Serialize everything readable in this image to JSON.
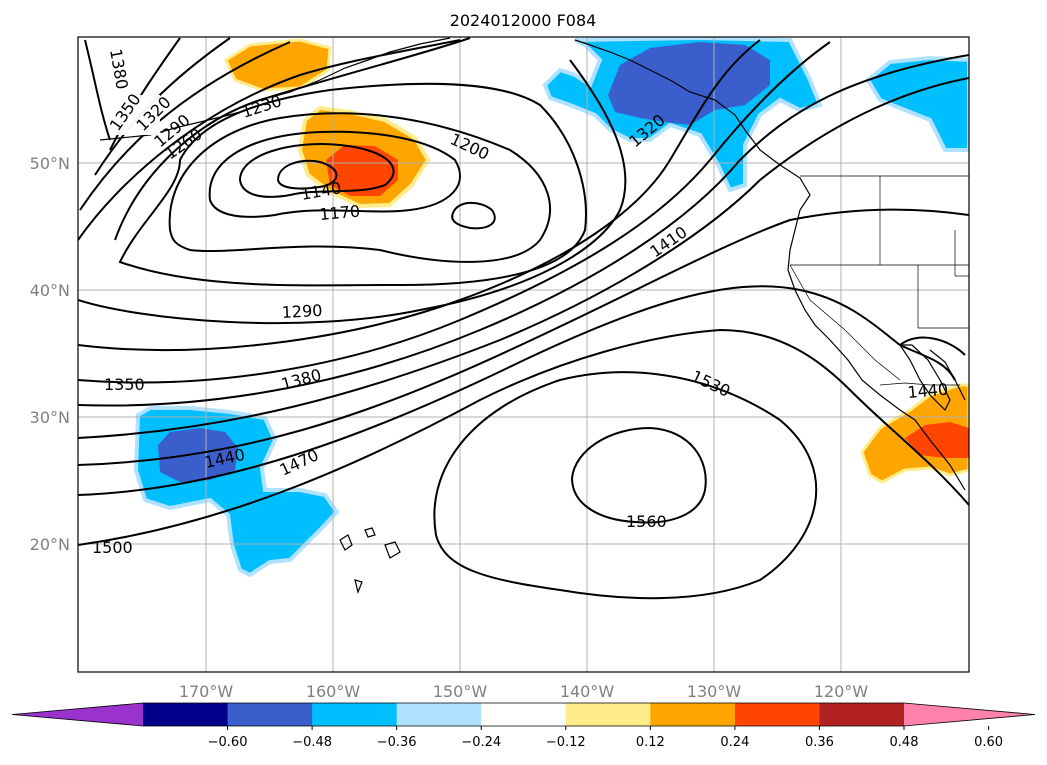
{
  "title": "2024012000 F084",
  "axes": {
    "x_ticks": [
      "170°W",
      "160°W",
      "150°W",
      "140°W",
      "130°W",
      "120°W"
    ],
    "y_ticks": [
      "50°N",
      "40°N",
      "30°N",
      "20°N"
    ]
  },
  "colorbar": {
    "levels": [
      "−0.60",
      "−0.48",
      "−0.36",
      "−0.24",
      "−0.12",
      "0.12",
      "0.24",
      "0.36",
      "0.48",
      "0.60"
    ],
    "colors": [
      "#9a32cd",
      "#00008b",
      "#3a5fcd",
      "#00bfff",
      "#b0e2ff",
      "#ffffff",
      "#ffec8b",
      "#ffa500",
      "#ff4500",
      "#b22222",
      "#ff82ab"
    ],
    "extend": "both"
  },
  "contour_labels": {
    "l1380": "1380",
    "l1350": "1350",
    "l1320": "1320",
    "l1290": "1290",
    "l1260": "1260",
    "l1230": "1230",
    "l1200": "1200",
    "l1140": "1140",
    "l1170": "1170",
    "l1410": "1410",
    "l1320b": "1320",
    "l1290b": "1290",
    "l1350b": "1350",
    "l1380b": "1380",
    "l1530": "1530",
    "l1440": "1440",
    "l1470": "1470",
    "l1560": "1560",
    "l1500": "1500",
    "l1440b": "1440"
  },
  "colors": {
    "coast": "#000000",
    "grid": "#b0b0b0",
    "contour": "#000000"
  }
}
